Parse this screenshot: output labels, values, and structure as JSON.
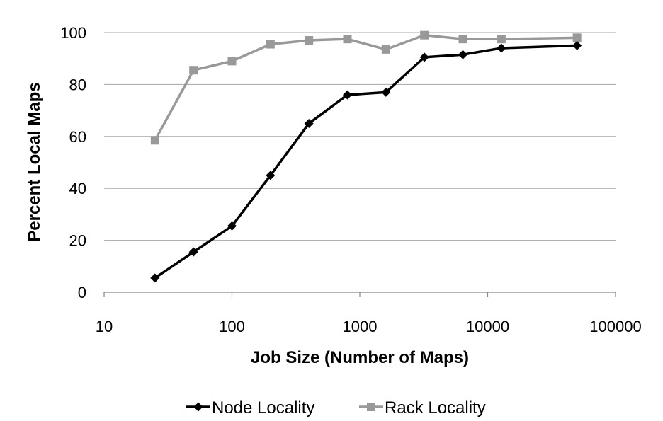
{
  "chart_data": {
    "type": "line",
    "title": "",
    "xlabel": "Job Size (Number of Maps)",
    "ylabel": "Percent Local Maps",
    "x_scale": "log",
    "xlim": [
      10,
      100000
    ],
    "ylim": [
      0,
      100
    ],
    "x_ticks": [
      "10",
      "100",
      "1000",
      "10000",
      "100000"
    ],
    "y_ticks": [
      "0",
      "20",
      "40",
      "60",
      "80",
      "100"
    ],
    "grid": "horizontal",
    "legend_position": "bottom",
    "x": [
      25,
      50,
      100,
      200,
      400,
      800,
      1600,
      3200,
      6400,
      12800,
      50000
    ],
    "series": [
      {
        "name": "Node Locality",
        "color": "#000000",
        "marker": "diamond",
        "values": [
          5.5,
          15.5,
          25.5,
          45,
          65,
          76,
          77,
          90.5,
          91.5,
          94,
          95
        ]
      },
      {
        "name": "Rack Locality",
        "color": "#999999",
        "marker": "square",
        "values": [
          58.5,
          85.5,
          89,
          95.5,
          97,
          97.5,
          93.5,
          99,
          97.5,
          97.5,
          98
        ]
      }
    ]
  }
}
